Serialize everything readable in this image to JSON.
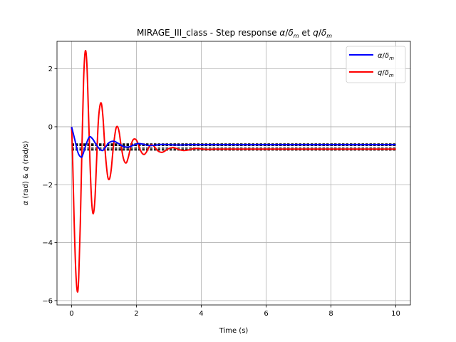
{
  "chart_data": {
    "type": "line",
    "title": {
      "prefix": "MIRAGE_III_class - Step response ",
      "alpha": "α",
      "q": "q",
      "delta": "δ",
      "sub": "m",
      "et": " et "
    },
    "xlabel": "Time (s)",
    "ylabel": {
      "alpha": "α",
      "mid": " (rad) & ",
      "q": "q",
      "end": " (rad/s)"
    },
    "xlim": [
      -0.45,
      10.45
    ],
    "ylim": [
      -6.15,
      2.95
    ],
    "xticks": [
      0,
      2,
      4,
      6,
      8,
      10
    ],
    "xtick_labels": [
      "0",
      "2",
      "4",
      "6",
      "8",
      "10"
    ],
    "yticks": [
      2,
      0,
      -2,
      -4,
      -6
    ],
    "ytick_labels": [
      "2",
      "0",
      "−2",
      "−4",
      "−6"
    ],
    "grid": true,
    "legend_position": "top-right",
    "series": [
      {
        "name": "α/δm",
        "color": "#0000ff",
        "final_value": -0.62,
        "x": [
          0,
          0.1,
          0.2,
          0.3,
          0.35,
          0.45,
          0.55,
          0.65,
          0.75,
          0.85,
          0.95,
          1.05,
          1.15,
          1.3,
          1.45,
          1.6,
          1.75,
          1.9,
          2.05,
          2.2,
          2.4,
          2.6,
          2.8,
          3.0,
          3.3,
          3.6,
          4.0,
          5,
          6,
          7,
          8,
          9,
          10
        ],
        "y": [
          0,
          -0.45,
          -0.9,
          -1.05,
          -0.95,
          -0.6,
          -0.35,
          -0.42,
          -0.6,
          -0.75,
          -0.82,
          -0.7,
          -0.55,
          -0.5,
          -0.58,
          -0.68,
          -0.7,
          -0.64,
          -0.58,
          -0.6,
          -0.65,
          -0.63,
          -0.61,
          -0.62,
          -0.63,
          -0.62,
          -0.62,
          -0.62,
          -0.62,
          -0.62,
          -0.62,
          -0.62,
          -0.62
        ]
      },
      {
        "name": "q/δm",
        "color": "#ff0000",
        "final_value": -0.77,
        "x": [
          0,
          0.03,
          0.08,
          0.13,
          0.18,
          0.22,
          0.27,
          0.32,
          0.37,
          0.42,
          0.47,
          0.52,
          0.57,
          0.62,
          0.67,
          0.72,
          0.77,
          0.82,
          0.87,
          0.92,
          0.97,
          1.02,
          1.07,
          1.12,
          1.17,
          1.22,
          1.27,
          1.32,
          1.37,
          1.42,
          1.47,
          1.52,
          1.6,
          1.68,
          1.75,
          1.82,
          1.88,
          1.95,
          2.02,
          2.1,
          2.18,
          2.25,
          2.32,
          2.4,
          2.47,
          2.55,
          2.62,
          2.7,
          2.8,
          2.9,
          3.0,
          3.15,
          3.3,
          3.45,
          3.6,
          3.75,
          3.9,
          4.05,
          4.2,
          4.4,
          4.6,
          5,
          6,
          7,
          8,
          9,
          10
        ],
        "y": [
          0,
          -1.0,
          -3.3,
          -5.0,
          -5.7,
          -5.2,
          -3.3,
          -0.7,
          1.6,
          2.6,
          2.2,
          0.5,
          -1.3,
          -2.6,
          -3.0,
          -2.5,
          -1.2,
          0.1,
          0.7,
          0.8,
          0.3,
          -0.6,
          -1.3,
          -1.75,
          -1.8,
          -1.5,
          -0.9,
          -0.4,
          -0.05,
          -0.0,
          -0.2,
          -0.6,
          -1.1,
          -1.25,
          -1.05,
          -0.7,
          -0.48,
          -0.42,
          -0.5,
          -0.75,
          -0.92,
          -0.95,
          -0.85,
          -0.68,
          -0.62,
          -0.68,
          -0.78,
          -0.86,
          -0.88,
          -0.82,
          -0.75,
          -0.72,
          -0.78,
          -0.82,
          -0.8,
          -0.76,
          -0.75,
          -0.77,
          -0.78,
          -0.77,
          -0.77,
          -0.77,
          -0.77,
          -0.77,
          -0.77,
          -0.77,
          -0.77
        ]
      }
    ]
  }
}
